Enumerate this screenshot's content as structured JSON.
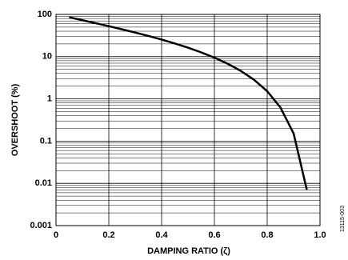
{
  "chart_data": {
    "type": "line",
    "xlabel": "DAMPING RATIO (ζ)",
    "ylabel": "OVERSHOOT (%)",
    "figure_id": "13115-003",
    "x": [
      0.05,
      0.1,
      0.15,
      0.2,
      0.25,
      0.3,
      0.35,
      0.4,
      0.45,
      0.5,
      0.55,
      0.6,
      0.65,
      0.7,
      0.75,
      0.8,
      0.85,
      0.9,
      0.95
    ],
    "values": [
      85.5,
      72.9,
      62.1,
      52.7,
      44.4,
      37.2,
      30.9,
      25.4,
      20.5,
      16.3,
      12.6,
      9.48,
      6.81,
      4.6,
      2.84,
      1.52,
      0.628,
      0.152,
      0.00706
    ],
    "color": "#000000",
    "xlim": [
      0,
      1
    ],
    "xticks": [
      0,
      0.2,
      0.4,
      0.6,
      0.8,
      {
        "value": 1,
        "label": "1.0"
      }
    ],
    "ylim": [
      0.001,
      100
    ],
    "yticks": [
      0.001,
      0.01,
      0.1,
      1,
      10,
      100
    ],
    "ylog": true,
    "grid": true,
    "minor_grid": true
  }
}
